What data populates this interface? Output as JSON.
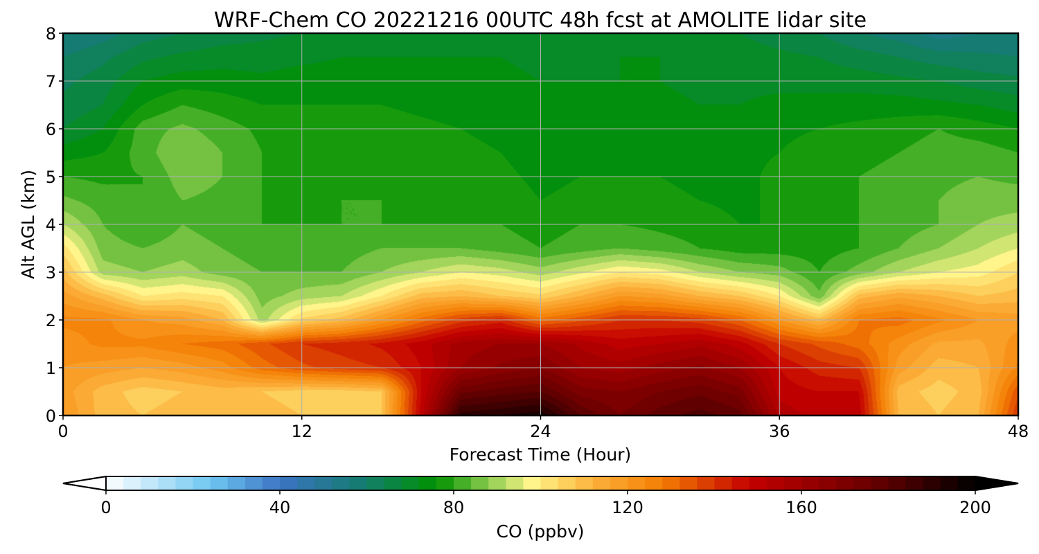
{
  "chart_data": {
    "type": "heatmap",
    "title": "WRF-Chem CO  20221216 00UTC 48h fcst at AMOLITE lidar site",
    "xlabel": "Forecast Time (Hour)",
    "ylabel": "Alt AGL (km)",
    "xlim": [
      0,
      48
    ],
    "ylim": [
      0,
      8
    ],
    "x_ticks": [
      0,
      12,
      24,
      36,
      48
    ],
    "y_ticks": [
      0,
      1,
      2,
      3,
      4,
      5,
      6,
      7,
      8
    ],
    "grid": true,
    "x": [
      0,
      2,
      4,
      6,
      8,
      10,
      12,
      14,
      16,
      18,
      20,
      22,
      24,
      26,
      28,
      30,
      32,
      34,
      36,
      38,
      40,
      42,
      44,
      46,
      48
    ],
    "y": [
      0,
      0.5,
      1,
      1.5,
      2,
      2.5,
      3,
      3.5,
      4,
      4.5,
      5,
      5.5,
      6,
      6.5,
      7,
      7.5,
      8
    ],
    "z_units": "ppbv",
    "z": [
      [
        120,
        110,
        108,
        110,
        112,
        110,
        108,
        108,
        108,
        150,
        190,
        192,
        195,
        180,
        172,
        178,
        182,
        178,
        155,
        150,
        150,
        112,
        108,
        112,
        140
      ],
      [
        118,
        110,
        106,
        108,
        110,
        108,
        106,
        106,
        108,
        148,
        175,
        178,
        180,
        170,
        168,
        172,
        175,
        170,
        150,
        148,
        148,
        110,
        106,
        110,
        135
      ],
      [
        120,
        118,
        116,
        118,
        122,
        130,
        135,
        138,
        140,
        148,
        160,
        165,
        168,
        160,
        158,
        162,
        165,
        160,
        148,
        142,
        140,
        118,
        110,
        112,
        125
      ],
      [
        122,
        125,
        125,
        128,
        130,
        135,
        140,
        142,
        145,
        150,
        158,
        160,
        160,
        155,
        150,
        152,
        155,
        150,
        140,
        135,
        130,
        122,
        115,
        115,
        122
      ],
      [
        125,
        125,
        120,
        118,
        112,
        90,
        105,
        110,
        120,
        130,
        138,
        142,
        130,
        135,
        140,
        140,
        138,
        132,
        120,
        110,
        128,
        130,
        125,
        120,
        118
      ],
      [
        118,
        110,
        100,
        102,
        100,
        86,
        90,
        92,
        100,
        110,
        112,
        108,
        105,
        112,
        120,
        118,
        112,
        108,
        100,
        85,
        110,
        115,
        112,
        108,
        110
      ],
      [
        110,
        90,
        88,
        90,
        86,
        84,
        84,
        84,
        88,
        92,
        96,
        94,
        90,
        95,
        100,
        98,
        92,
        88,
        86,
        80,
        86,
        92,
        96,
        98,
        104
      ],
      [
        102,
        86,
        84,
        86,
        84,
        82,
        82,
        82,
        84,
        84,
        84,
        82,
        80,
        82,
        84,
        82,
        80,
        78,
        78,
        78,
        80,
        84,
        88,
        92,
        96
      ],
      [
        92,
        84,
        80,
        84,
        82,
        80,
        80,
        80,
        80,
        80,
        80,
        80,
        78,
        80,
        80,
        79,
        78,
        76,
        76,
        78,
        80,
        82,
        84,
        88,
        90
      ],
      [
        85,
        82,
        80,
        84,
        83,
        80,
        79,
        80,
        80,
        79,
        79,
        78,
        76,
        77,
        77,
        77,
        76,
        75,
        77,
        79,
        80,
        82,
        84,
        86,
        86
      ],
      [
        80,
        79,
        80,
        86,
        84,
        80,
        79,
        79,
        79,
        78,
        78,
        77,
        75,
        76,
        76,
        76,
        75,
        75,
        77,
        79,
        80,
        81,
        83,
        84,
        83
      ],
      [
        74,
        76,
        82,
        88,
        84,
        80,
        78,
        79,
        79,
        78,
        77,
        76,
        74,
        75,
        75,
        75,
        74,
        75,
        76,
        78,
        79,
        80,
        82,
        82,
        80
      ],
      [
        68,
        72,
        82,
        85,
        82,
        79,
        77,
        78,
        78,
        77,
        76,
        75,
        73,
        74,
        74,
        74,
        73,
        74,
        75,
        76,
        77,
        78,
        80,
        78,
        76
      ],
      [
        65,
        68,
        76,
        80,
        78,
        76,
        76,
        76,
        76,
        75,
        74,
        74,
        72,
        73,
        73,
        73,
        72,
        72,
        73,
        74,
        74,
        74,
        73,
        72,
        70
      ],
      [
        63,
        66,
        72,
        74,
        74,
        73,
        74,
        74,
        74,
        74,
        73,
        73,
        72,
        72,
        72,
        72,
        71,
        71,
        71,
        70,
        70,
        69,
        68,
        66,
        65
      ],
      [
        60,
        63,
        67,
        69,
        70,
        70,
        71,
        72,
        72,
        72,
        72,
        72,
        71,
        71,
        72,
        72,
        71,
        70,
        69,
        68,
        66,
        64,
        62,
        61,
        60
      ],
      [
        56,
        58,
        62,
        64,
        66,
        67,
        68,
        69,
        70,
        70,
        70,
        70,
        70,
        70,
        72,
        71,
        70,
        68,
        66,
        64,
        60,
        58,
        54,
        56,
        57
      ]
    ],
    "colorbar": {
      "label": "CO  (ppbv)",
      "min": 0,
      "max": 200,
      "ticks": [
        0,
        40,
        80,
        120,
        160,
        200
      ],
      "extend": "both",
      "levels": 50,
      "colors": {
        "0": "#ffffff",
        "24": "#6fc7f2",
        "40": "#3b73c4",
        "60": "#127d6a",
        "76": "#009100",
        "88": "#8ccc50",
        "98": "#fff58a",
        "112": "#fcb23c",
        "128": "#f47d03",
        "148": "#c40000",
        "176": "#6a0000",
        "200": "#000000"
      }
    }
  }
}
